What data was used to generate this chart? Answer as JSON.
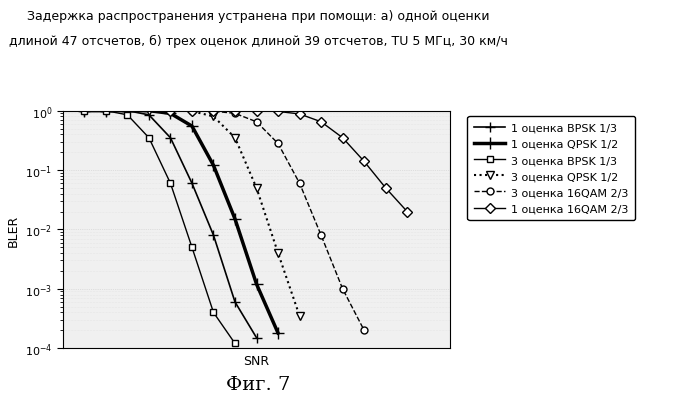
{
  "title_line1": "Задержка распространения устранена при помощи: а) одной оценки",
  "title_line2": "длиной 47 отсчетов, б) трех оценок длиной 39 отсчетов, TU 5 МГц, 30 км/ч",
  "xlabel": "SNR",
  "ylabel": "BLER",
  "fig_label": "Фиг. 7",
  "series": [
    {
      "label": "1 оценка BPSK 1/3",
      "x": [
        -2,
        0,
        2,
        4,
        6,
        8,
        10,
        12,
        14
      ],
      "y": [
        1.0,
        1.0,
        1.0,
        0.85,
        0.35,
        0.06,
        0.008,
        0.0006,
        0.00015
      ],
      "color": "#000000",
      "linestyle": "-",
      "marker": "+",
      "markersize": 7,
      "linewidth": 1.2,
      "markerfacecolor": "black"
    },
    {
      "label": "1 оценка QPSK 1/2",
      "x": [
        -2,
        0,
        2,
        4,
        6,
        8,
        10,
        12,
        14,
        16
      ],
      "y": [
        1.0,
        1.0,
        1.0,
        1.0,
        0.9,
        0.55,
        0.12,
        0.015,
        0.0012,
        0.00018
      ],
      "color": "#000000",
      "linestyle": "-",
      "marker": "+",
      "markersize": 8,
      "linewidth": 2.5,
      "markerfacecolor": "black"
    },
    {
      "label": "3 оценка BPSK 1/3",
      "x": [
        -2,
        0,
        2,
        4,
        6,
        8,
        10,
        12
      ],
      "y": [
        1.0,
        1.0,
        0.85,
        0.35,
        0.06,
        0.005,
        0.0004,
        0.00012
      ],
      "color": "#000000",
      "linestyle": "-",
      "marker": "s",
      "markersize": 5,
      "linewidth": 1.0,
      "markerfacecolor": "white"
    },
    {
      "label": "3 оценка QPSK 1/2",
      "x": [
        4,
        6,
        8,
        10,
        12,
        14,
        16,
        18
      ],
      "y": [
        1.0,
        1.0,
        0.98,
        0.8,
        0.35,
        0.05,
        0.004,
        0.00035
      ],
      "color": "#000000",
      "linestyle": ":",
      "marker": "v",
      "markersize": 6,
      "linewidth": 1.5,
      "markerfacecolor": "white"
    },
    {
      "label": "3 оценка 16QAM 2/3",
      "x": [
        6,
        8,
        10,
        12,
        14,
        16,
        18,
        20,
        22,
        24
      ],
      "y": [
        1.0,
        1.0,
        0.98,
        0.9,
        0.65,
        0.28,
        0.06,
        0.008,
        0.001,
        0.0002
      ],
      "color": "#000000",
      "linestyle": "--",
      "marker": "o",
      "markersize": 5,
      "linewidth": 1.0,
      "markerfacecolor": "white"
    },
    {
      "label": "1 оценка 16QAM 2/3",
      "x": [
        6,
        8,
        10,
        12,
        14,
        16,
        18,
        20,
        22,
        24,
        26,
        28
      ],
      "y": [
        1.0,
        1.0,
        1.0,
        1.0,
        0.99,
        0.97,
        0.88,
        0.65,
        0.35,
        0.14,
        0.05,
        0.02
      ],
      "color": "#000000",
      "linestyle": "-",
      "marker": "D",
      "markersize": 5,
      "linewidth": 1.0,
      "markerfacecolor": "white"
    }
  ],
  "background_color": "#f0f0f0",
  "grid_major_color": "#cccccc",
  "grid_minor_color": "#dddddd",
  "legend_fontsize": 8,
  "axis_fontsize": 9,
  "title_fontsize": 9,
  "fig_label_fontsize": 14,
  "xlim": [
    -4,
    32
  ],
  "ylim_low": 0.0001,
  "ylim_high": 1.0
}
